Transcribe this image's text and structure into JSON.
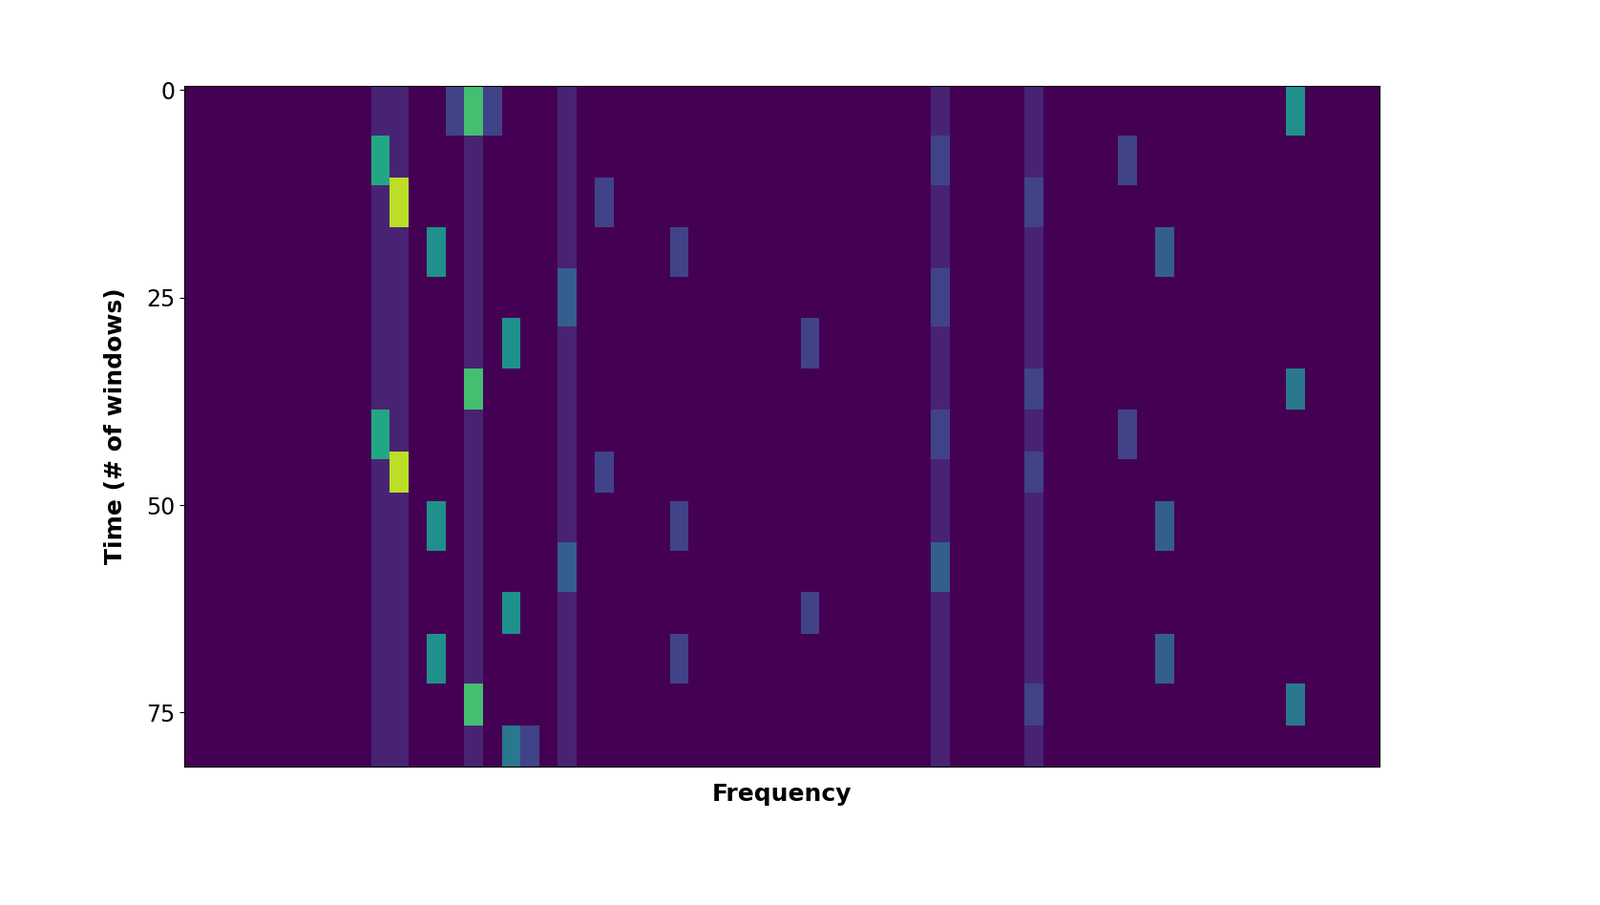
{
  "chart_data": {
    "type": "heatmap",
    "xlabel": "Frequency",
    "ylabel": "Time (# of windows)",
    "xlim": [
      -0.5,
      63.5
    ],
    "ylim": [
      81.5,
      -0.5
    ],
    "yticks": [
      0,
      25,
      50,
      75
    ],
    "tick_labels": "y",
    "color": "viridis",
    "value_range": [
      0,
      10
    ],
    "cells": [
      {
        "rows": [
          0,
          81
        ],
        "col": 10,
        "value": 1
      },
      {
        "rows": [
          0,
          81
        ],
        "col": 11,
        "value": 1
      },
      {
        "rows": [
          0,
          81
        ],
        "col": 15,
        "value": 1
      },
      {
        "rows": [
          0,
          81
        ],
        "col": 20,
        "value": 1
      },
      {
        "rows": [
          0,
          81
        ],
        "col": 40,
        "value": 1
      },
      {
        "rows": [
          0,
          81
        ],
        "col": 45,
        "value": 1
      },
      {
        "rows": [
          0,
          5
        ],
        "col": 14,
        "value": 2
      },
      {
        "rows": [
          0,
          5
        ],
        "col": 16,
        "value": 2
      },
      {
        "rows": [
          0,
          5
        ],
        "col": 15,
        "value": 7
      },
      {
        "rows": [
          0,
          5
        ],
        "col": 59,
        "value": 5
      },
      {
        "rows": [
          6,
          11
        ],
        "col": 10,
        "value": 6
      },
      {
        "rows": [
          6,
          11
        ],
        "col": 40,
        "value": 2
      },
      {
        "rows": [
          6,
          11
        ],
        "col": 50,
        "value": 2
      },
      {
        "rows": [
          11,
          16
        ],
        "col": 11,
        "value": 9
      },
      {
        "rows": [
          11,
          16
        ],
        "col": 22,
        "value": 2
      },
      {
        "rows": [
          11,
          16
        ],
        "col": 45,
        "value": 2
      },
      {
        "rows": [
          17,
          22
        ],
        "col": 13,
        "value": 5
      },
      {
        "rows": [
          17,
          22
        ],
        "col": 26,
        "value": 2
      },
      {
        "rows": [
          17,
          22
        ],
        "col": 52,
        "value": 3
      },
      {
        "rows": [
          22,
          28
        ],
        "col": 20,
        "value": 3
      },
      {
        "rows": [
          22,
          28
        ],
        "col": 40,
        "value": 2
      },
      {
        "rows": [
          28,
          33
        ],
        "col": 17,
        "value": 5
      },
      {
        "rows": [
          28,
          33
        ],
        "col": 33,
        "value": 2
      },
      {
        "rows": [
          34,
          38
        ],
        "col": 15,
        "value": 7
      },
      {
        "rows": [
          34,
          38
        ],
        "col": 59,
        "value": 4
      },
      {
        "rows": [
          34,
          38
        ],
        "col": 45,
        "value": 2
      },
      {
        "rows": [
          39,
          44
        ],
        "col": 10,
        "value": 6
      },
      {
        "rows": [
          39,
          44
        ],
        "col": 40,
        "value": 2
      },
      {
        "rows": [
          39,
          44
        ],
        "col": 50,
        "value": 2
      },
      {
        "rows": [
          44,
          48
        ],
        "col": 11,
        "value": 9
      },
      {
        "rows": [
          44,
          48
        ],
        "col": 22,
        "value": 2
      },
      {
        "rows": [
          44,
          48
        ],
        "col": 45,
        "value": 2
      },
      {
        "rows": [
          50,
          55
        ],
        "col": 13,
        "value": 5
      },
      {
        "rows": [
          50,
          55
        ],
        "col": 26,
        "value": 2
      },
      {
        "rows": [
          50,
          55
        ],
        "col": 52,
        "value": 3
      },
      {
        "rows": [
          55,
          60
        ],
        "col": 20,
        "value": 3
      },
      {
        "rows": [
          55,
          60
        ],
        "col": 40,
        "value": 3
      },
      {
        "rows": [
          61,
          65
        ],
        "col": 17,
        "value": 5
      },
      {
        "rows": [
          61,
          65
        ],
        "col": 33,
        "value": 2
      },
      {
        "rows": [
          66,
          71
        ],
        "col": 13,
        "value": 5
      },
      {
        "rows": [
          66,
          71
        ],
        "col": 26,
        "value": 2
      },
      {
        "rows": [
          66,
          71
        ],
        "col": 52,
        "value": 3
      },
      {
        "rows": [
          72,
          76
        ],
        "col": 15,
        "value": 7
      },
      {
        "rows": [
          72,
          76
        ],
        "col": 59,
        "value": 4
      },
      {
        "rows": [
          72,
          76
        ],
        "col": 45,
        "value": 2
      },
      {
        "rows": [
          77,
          81
        ],
        "col": 17,
        "value": 4
      },
      {
        "rows": [
          77,
          81
        ],
        "col": 18,
        "value": 2
      }
    ]
  }
}
